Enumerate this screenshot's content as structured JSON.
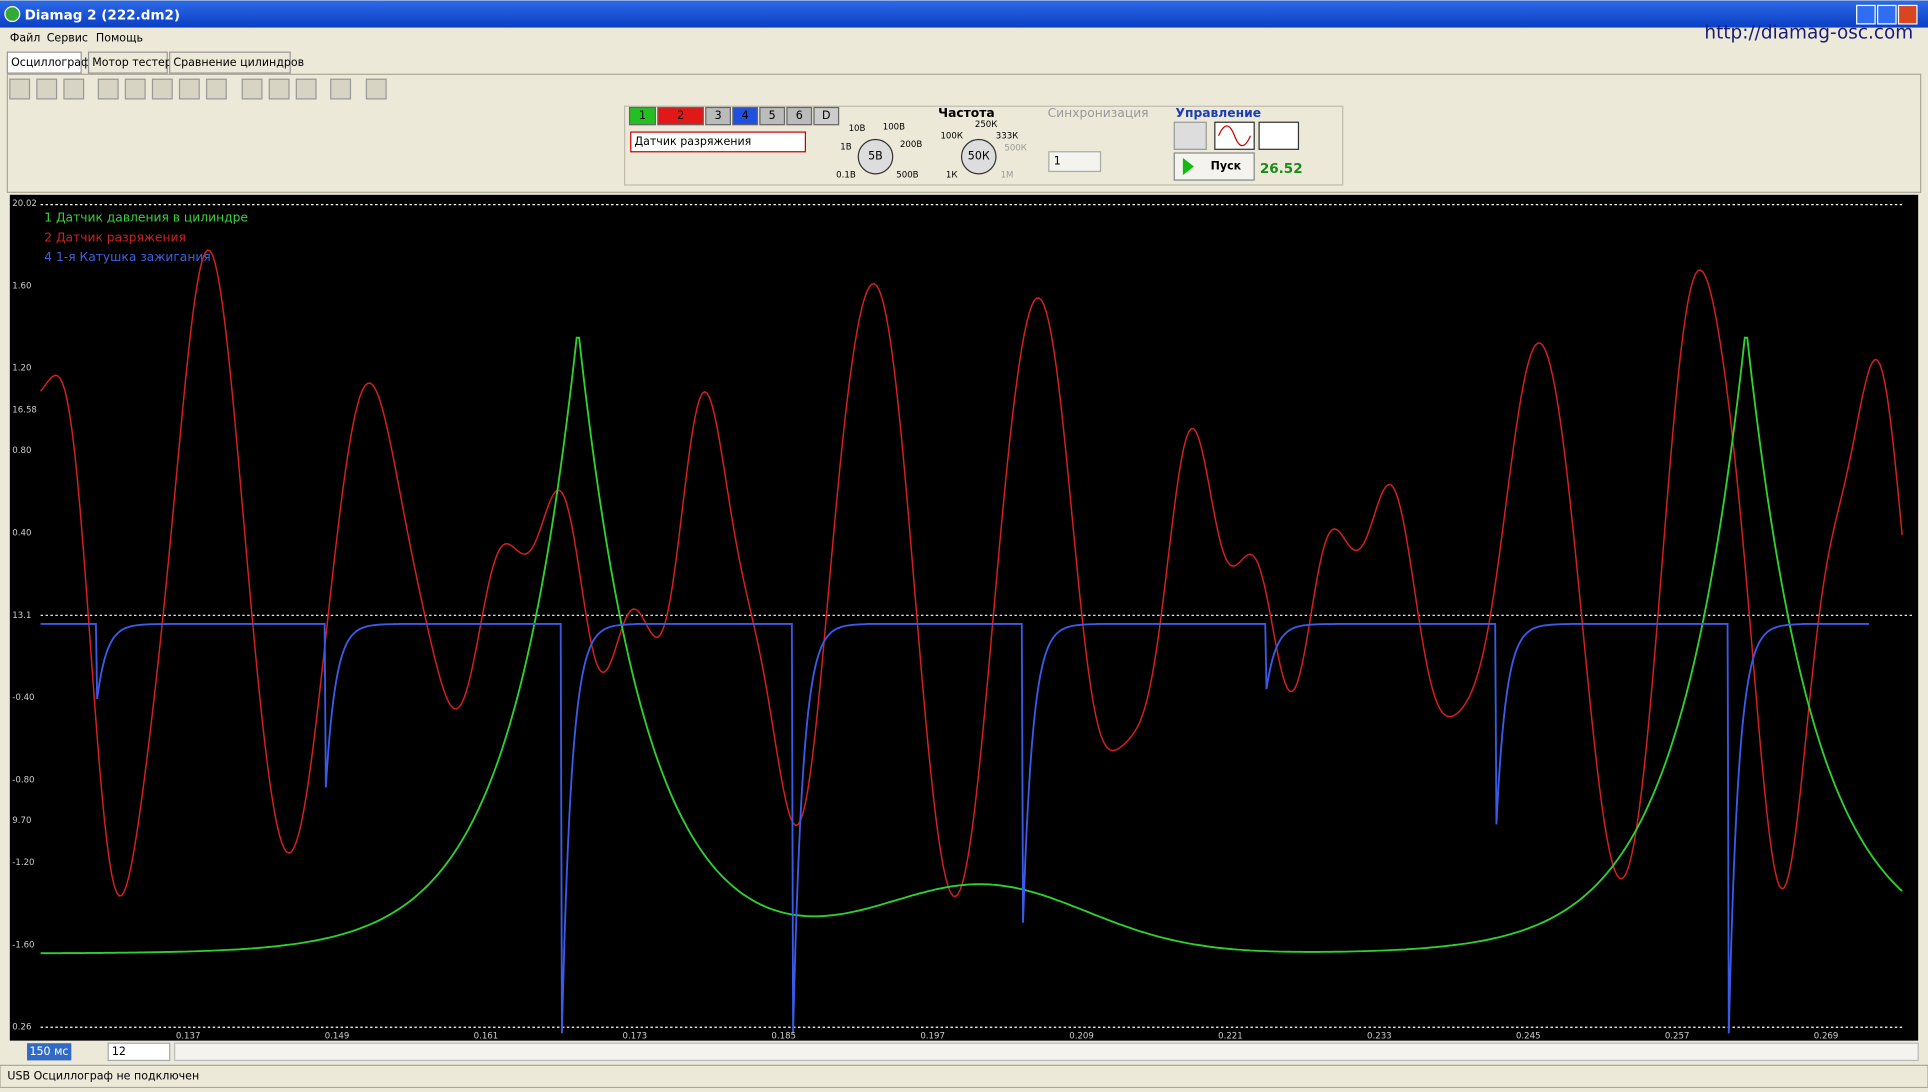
{
  "window": {
    "title": "Diamag 2 (222.dm2)",
    "url": "http://diamag-osc.com"
  },
  "menu": [
    "Файл",
    "Сервис",
    "Помощь"
  ],
  "tabs": [
    "Осциллограф",
    "Мотор тестер",
    "Сравнение цилиндров"
  ],
  "channels": [
    "1",
    "2",
    "3",
    "4",
    "5",
    "6",
    "D"
  ],
  "sensor": "Датчик разряжения",
  "voltage_knob": {
    "value": "5В",
    "labels": [
      "10В",
      "100В",
      "1В",
      "200В",
      "0.1В",
      "500В"
    ]
  },
  "frequency": {
    "title": "Частота",
    "value": "50К",
    "labels": [
      "250К",
      "100К",
      "333К",
      "500К",
      "1К",
      "1М"
    ]
  },
  "sync": {
    "title": "Синхронизация",
    "value": "1"
  },
  "control": {
    "title": "Управление",
    "start": "Пуск",
    "value": "26.52"
  },
  "scope": {
    "legend": [
      "1 Датчик давления в цилиндре",
      "2 Датчик разряжения",
      "4 1-я Катушка зажигания"
    ],
    "y_labels": [
      "20.02",
      "1.60",
      "1.20",
      "16.58",
      "0.80",
      "0.40",
      "13.1",
      "-0.40",
      "-0.80",
      "9.70",
      "-1.20",
      "-1.60",
      "0.26"
    ],
    "x_labels": [
      "0.137",
      "0.149",
      "0.161",
      "0.173",
      "0.185",
      "0.197",
      "0.209",
      "0.221",
      "0.233",
      "0.245",
      "0.257",
      "0.269"
    ]
  },
  "bottom": {
    "timebase": "150 мс",
    "zoom": "12"
  },
  "status": "USB Осциллограф не подключен"
}
